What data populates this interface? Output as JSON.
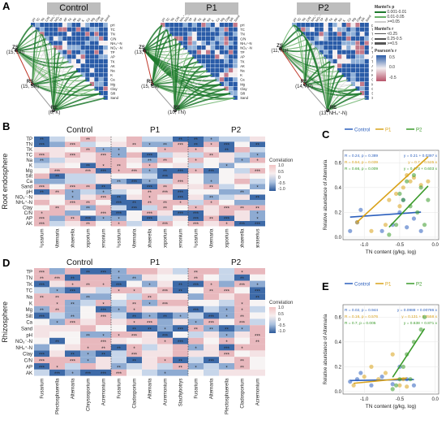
{
  "panelA": {
    "letter": "A",
    "groups": [
      {
        "title": "Control",
        "nodes": [
          {
            "name": "ZS",
            "sub": "(15, Silt)"
          },
          {
            "name": "RS",
            "sub": "(15, Silt)"
          },
          {
            "name": "RE",
            "sub": "(6, K)"
          }
        ]
      },
      {
        "title": "P1",
        "nodes": [
          {
            "name": "ZS",
            "sub": "(13, K)"
          },
          {
            "name": "RS",
            "sub": "(15, Ca)"
          },
          {
            "name": "RE",
            "sub": "(10, TN)"
          }
        ]
      },
      {
        "title": "P2",
        "nodes": [
          {
            "name": "ZS",
            "sub": "(11, Na)"
          },
          {
            "name": "RS",
            "sub": "(14, AP)"
          },
          {
            "name": "RE",
            "sub": "(13, NH₄⁺-N)"
          }
        ]
      }
    ],
    "variables": [
      "pH",
      "TC",
      "TN",
      "C/N",
      "NH₄⁺-N",
      "NO₃⁻-N",
      "TP",
      "AP",
      "TK",
      "AK",
      "Na",
      "K",
      "Ca",
      "Mg",
      "Clay",
      "Silt",
      "Sand"
    ],
    "legend": {
      "mantel_p_title": "Mantel's p",
      "mantel_p": [
        "0.001-0.01",
        "0.01-0.05",
        ">=0.05"
      ],
      "mantel_r_title": "Mantel's r",
      "mantel_r": [
        "<0.25",
        "0.25-0.5",
        ">=0.5"
      ],
      "pearson_title": "Pearson's r",
      "pearson_ticks": [
        "0.5",
        "0.0",
        "-0.5"
      ]
    }
  },
  "panelB": {
    "letter": "B",
    "ylabel": "Root endosphere",
    "groups": [
      "Control",
      "P1",
      "P2"
    ],
    "rows": [
      "TP",
      "TN",
      "TK",
      "TC",
      "Na",
      "K",
      "Mg",
      "Silt",
      "Ca",
      "Sand",
      "pH",
      "NO₃⁻-N",
      "NH₄⁺-N",
      "Clay",
      "C/N",
      "AP",
      "AK"
    ],
    "columns": [
      "Fusarium",
      "Alternaria",
      "Plectosphaerella",
      "Cladosporium",
      "Acremonium",
      "Fusarium",
      "Alternaria",
      "Plectosphaerella",
      "Cladosporium",
      "Acremonium",
      "Fusarium",
      "Alternaria",
      "Cladosporium",
      "Plectosphaerella",
      "Paraserius"
    ],
    "legend": {
      "title": "Correlation",
      "ticks": [
        "1.0",
        "0.5",
        "0",
        "-0.5",
        "-1.0"
      ]
    }
  },
  "panelC": {
    "letter": "C",
    "legend": [
      "Control",
      "P1",
      "P2"
    ],
    "stats": [
      {
        "left": "R = 0.24, p = 0.389",
        "right": "y = 0.21 + 0.0397 x"
      },
      {
        "left": "R = 0.54, p = 0.039",
        "right": "y = 0.7 + 0.525 x"
      },
      {
        "left": "R = 0.66, p = 0.009",
        "right": "y = 0.473 + 0.603 x"
      }
    ],
    "colors": [
      "#2b5fbd",
      "#d9a21a",
      "#3a9a2a"
    ],
    "chart_data": {
      "type": "scatter",
      "xlabel": "TN content (g/kg, log)",
      "ylabel": "Relative abundance of Alternaria",
      "xlim": [
        -1.3,
        0.05
      ],
      "ylim": [
        -0.02,
        0.7
      ],
      "xticks": [
        -1.0,
        -0.5,
        0.0
      ],
      "yticks": [
        0.0,
        0.2,
        0.4,
        0.6
      ],
      "series": [
        {
          "name": "Control",
          "x": [
            -1.2,
            -1.1,
            -1.05,
            -0.75,
            -0.6,
            -0.5,
            -0.45,
            -0.4,
            -0.3,
            -0.2
          ],
          "y": [
            0.05,
            0.12,
            0.22,
            0.05,
            0.1,
            0.2,
            0.3,
            0.08,
            0.15,
            0.05
          ],
          "fit": [
            0.21,
            0.0397
          ]
        },
        {
          "name": "P1",
          "x": [
            -1.1,
            -0.9,
            -0.7,
            -0.65,
            -0.55,
            -0.5,
            -0.45,
            -0.4,
            -0.35,
            -0.3,
            -0.2,
            -0.1
          ],
          "y": [
            0.12,
            0.05,
            0.1,
            0.3,
            0.35,
            0.25,
            0.4,
            0.5,
            0.45,
            0.48,
            0.42,
            0.45
          ],
          "fit": [
            0.7,
            0.525
          ]
        },
        {
          "name": "P2",
          "x": [
            -0.65,
            -0.55,
            -0.5,
            -0.45,
            -0.4,
            -0.35,
            -0.3,
            -0.25,
            -0.2,
            -0.15,
            -0.1
          ],
          "y": [
            0.02,
            0.1,
            0.35,
            0.3,
            0.45,
            0.25,
            0.5,
            0.2,
            0.4,
            0.1,
            0.3
          ],
          "fit": [
            0.473,
            0.603
          ]
        }
      ]
    }
  },
  "panelD": {
    "letter": "D",
    "ylabel": "Rhizosphere",
    "groups": [
      "Control",
      "P1",
      "P2"
    ],
    "rows": [
      "TP",
      "TN",
      "TK",
      "TC",
      "Na",
      "K",
      "Mg",
      "Silt",
      "Ca",
      "Sand",
      "pH",
      "NO₃⁻-N",
      "NH₄⁺-N",
      "Clay",
      "C/N",
      "AP",
      "AK"
    ],
    "columns": [
      "Fusarium",
      "Plectosphaerella",
      "Alternaria",
      "Chrysosporium",
      "Acremonium",
      "Fusarium",
      "Cladosporium",
      "Alternaria",
      "Acremonium",
      "Stachybotrys",
      "Fusarium",
      "Alternaria",
      "Plectosphaerella",
      "Cladosporium",
      "Acremonium"
    ],
    "legend": {
      "title": "Correlation",
      "ticks": [
        "1.0",
        "0.5",
        "0",
        "-0.5",
        "-1.0"
      ]
    }
  },
  "panelE": {
    "letter": "E",
    "legend": [
      "Control",
      "P1",
      "P2"
    ],
    "stats": [
      {
        "left": "R = 0.02, p = 0.944",
        "right": "y = 0.0988 + 0.00786 x"
      },
      {
        "left": "R = 0.16, p = 0.576",
        "right": "y = 0.131 + 0.0558 x"
      },
      {
        "left": "R = 0.7, p = 0.005",
        "right": "y = 0.638 + 0.871 x"
      }
    ],
    "colors": [
      "#2b5fbd",
      "#d9a21a",
      "#3a9a2a"
    ],
    "chart_data": {
      "type": "scatter",
      "xlabel": "TN content (g/kg, log)",
      "ylabel": "Relative abundance of Alternaria",
      "xlim": [
        -1.3,
        0.05
      ],
      "ylim": [
        -0.02,
        0.7
      ],
      "xticks": [
        -1.0,
        -0.5,
        0.0
      ],
      "yticks": [
        0.0,
        0.2,
        0.4,
        0.6
      ],
      "series": [
        {
          "name": "Control",
          "x": [
            -1.2,
            -1.1,
            -1.05,
            -0.9,
            -0.75,
            -0.6,
            -0.5,
            -0.4,
            -0.3
          ],
          "y": [
            0.08,
            0.1,
            0.15,
            0.05,
            0.12,
            0.06,
            0.2,
            0.1,
            0.05
          ],
          "fit": [
            0.0988,
            0.00786
          ]
        },
        {
          "name": "P1",
          "x": [
            -1.15,
            -1.0,
            -0.9,
            -0.8,
            -0.7,
            -0.6,
            -0.5,
            -0.45,
            -0.4
          ],
          "y": [
            0.05,
            0.12,
            0.2,
            0.1,
            0.15,
            0.3,
            0.05,
            0.1,
            0.04
          ],
          "fit": [
            0.131,
            0.0558
          ]
        },
        {
          "name": "P2",
          "x": [
            -0.6,
            -0.55,
            -0.5,
            -0.45,
            -0.4,
            -0.35,
            -0.3,
            -0.2,
            -0.15
          ],
          "y": [
            0.02,
            0.05,
            0.1,
            0.2,
            0.3,
            0.1,
            0.4,
            0.5,
            0.6
          ],
          "fit": [
            0.638,
            0.871
          ]
        }
      ]
    }
  }
}
